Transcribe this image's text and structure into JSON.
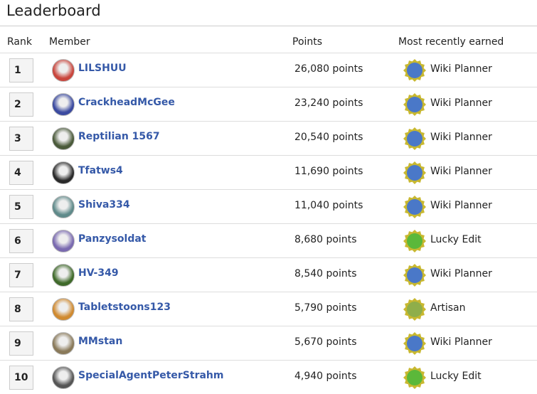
{
  "header": {
    "title": "Leaderboard"
  },
  "table": {
    "columns": [
      "Rank",
      "Member",
      "Points",
      "Most recently earned"
    ],
    "rows": [
      {
        "rank": "1",
        "member": "LILSHUU",
        "points": "26,080 points",
        "badge": "Wiki Planner",
        "badge_color": "#4a78c8"
      },
      {
        "rank": "2",
        "member": "CrackheadMcGee",
        "points": "23,240 points",
        "badge": "Wiki Planner",
        "badge_color": "#4a78c8"
      },
      {
        "rank": "3",
        "member": "Reptilian 1567",
        "points": "20,540 points",
        "badge": "Wiki Planner",
        "badge_color": "#4a78c8"
      },
      {
        "rank": "4",
        "member": "Tfatws4",
        "points": "11,690 points",
        "badge": "Wiki Planner",
        "badge_color": "#4a78c8"
      },
      {
        "rank": "5",
        "member": "Shiva334",
        "points": "11,040 points",
        "badge": "Wiki Planner",
        "badge_color": "#4a78c8"
      },
      {
        "rank": "6",
        "member": "Panzysoldat",
        "points": "8,680 points",
        "badge": "Lucky Edit",
        "badge_color": "#5bb83a"
      },
      {
        "rank": "7",
        "member": "HV-349",
        "points": "8,540 points",
        "badge": "Wiki Planner",
        "badge_color": "#4a78c8"
      },
      {
        "rank": "8",
        "member": "Tabletstoons123",
        "points": "5,790 points",
        "badge": "Artisan",
        "badge_color": "#8fae4a"
      },
      {
        "rank": "9",
        "member": "MMstan",
        "points": "5,670 points",
        "badge": "Wiki Planner",
        "badge_color": "#4a78c8"
      },
      {
        "rank": "10",
        "member": "SpecialAgentPeterStrahm",
        "points": "4,940 points",
        "badge": "Lucky Edit",
        "badge_color": "#5bb83a"
      }
    ]
  }
}
